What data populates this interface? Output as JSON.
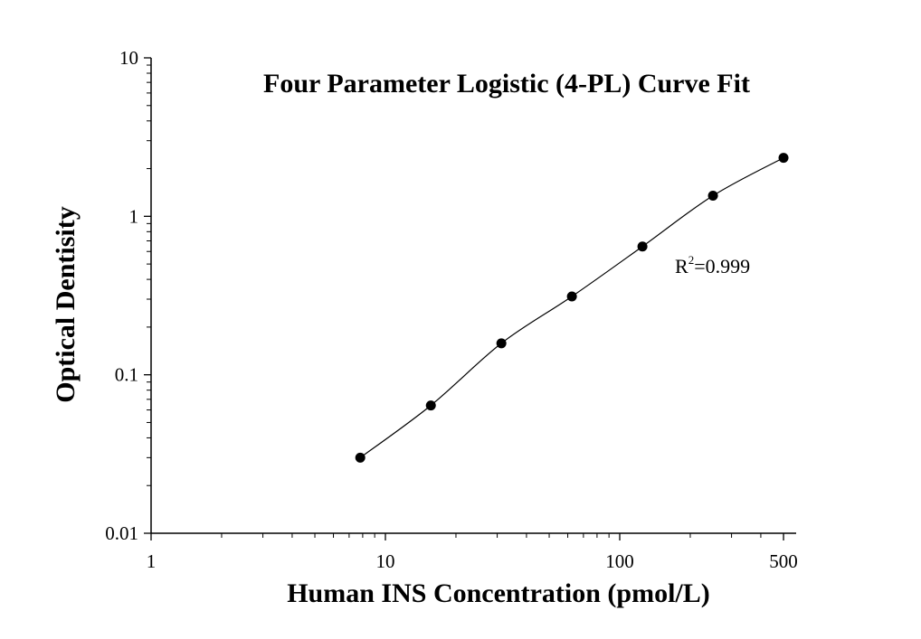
{
  "chart_data": {
    "type": "scatter",
    "title": "Four Parameter Logistic (4-PL) Curve Fit",
    "xlabel": "Human INS Concentration (pmol/L)",
    "ylabel": "Optical Dentisity",
    "x_scale": "log",
    "y_scale": "log",
    "xlim": [
      1,
      500
    ],
    "ylim": [
      0.01,
      10
    ],
    "x_ticks": [
      {
        "value": 1,
        "label": "1"
      },
      {
        "value": 10,
        "label": "10"
      },
      {
        "value": 100,
        "label": "100"
      },
      {
        "value": 500,
        "label": "500"
      }
    ],
    "y_ticks": [
      {
        "value": 0.01,
        "label": "0.01"
      },
      {
        "value": 0.1,
        "label": "0.1"
      },
      {
        "value": 1,
        "label": "1"
      },
      {
        "value": 10,
        "label": "10"
      }
    ],
    "points": {
      "x": [
        7.81,
        15.63,
        31.25,
        62.5,
        125,
        250,
        500
      ],
      "y": [
        0.03,
        0.064,
        0.158,
        0.312,
        0.645,
        1.35,
        2.34
      ]
    },
    "annotation": {
      "r_text": "R",
      "sup": "2",
      "value": "=0.999"
    },
    "grid": false,
    "legend": "none",
    "colors": {
      "marker": "#000000",
      "line": "#000000",
      "axis": "#000000"
    }
  }
}
